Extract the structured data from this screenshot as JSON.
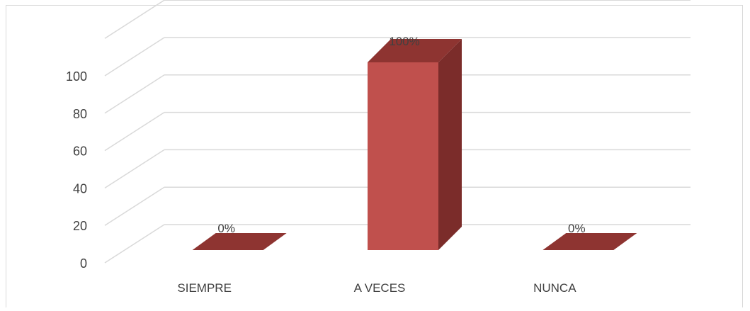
{
  "chart_data": {
    "type": "bar",
    "categories": [
      "SIEMPRE",
      "A VECES",
      "NUNCA"
    ],
    "values": [
      0,
      100,
      0
    ],
    "data_labels": [
      "0%",
      "100%",
      "0%"
    ],
    "ylim": [
      0,
      120
    ],
    "yticks": [
      0,
      20,
      40,
      60,
      80,
      100
    ],
    "title": "",
    "xlabel": "",
    "ylabel": "",
    "grid": true,
    "legend": "none",
    "style": "3d-column"
  },
  "colors": {
    "bar_front": "#C0504D",
    "bar_side": "#7B2C2A",
    "bar_top": "#8E3431",
    "gridline": "#D9D9D9",
    "text": "#404040",
    "frame": "#D9D9D9"
  }
}
